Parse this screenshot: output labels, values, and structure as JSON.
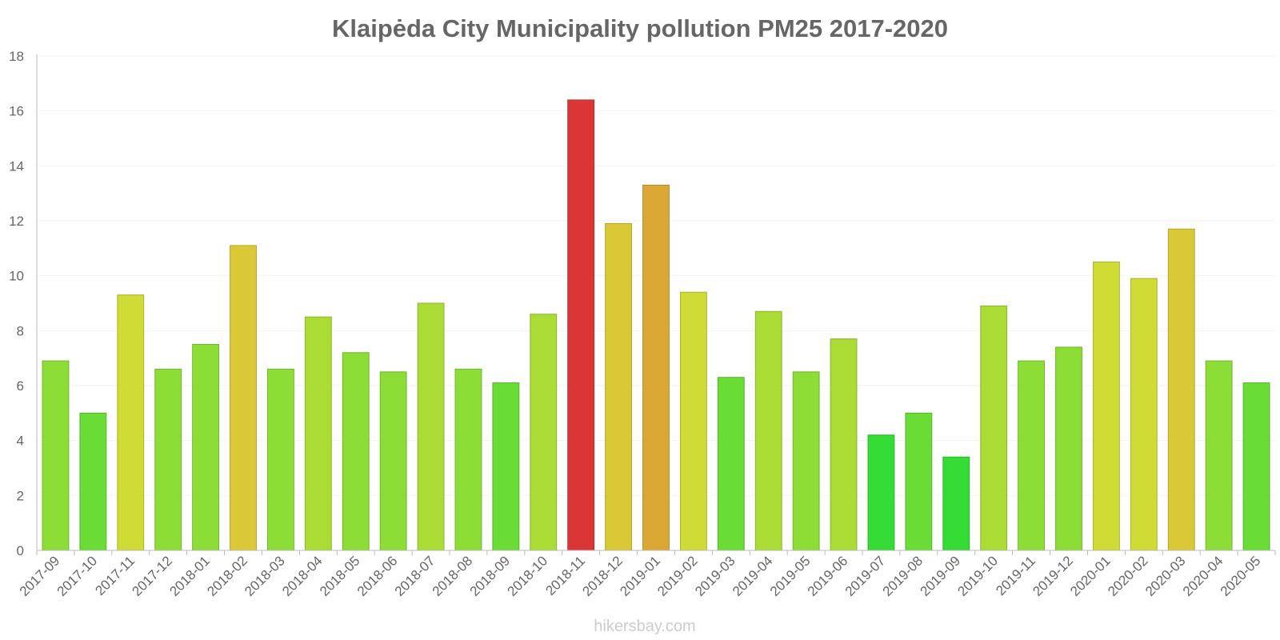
{
  "chart_data": {
    "type": "bar",
    "title": "Klaipėda City Municipality pollution PM25 2017-2020",
    "xlabel": "",
    "ylabel": "",
    "ylim": [
      0,
      18
    ],
    "yticks": [
      0,
      2,
      4,
      6,
      8,
      10,
      12,
      14,
      16,
      18
    ],
    "grid": true,
    "legend": "none",
    "categories": [
      "2017-09",
      "2017-10",
      "2017-11",
      "2017-12",
      "2018-01",
      "2018-02",
      "2018-03",
      "2018-04",
      "2018-05",
      "2018-06",
      "2018-07",
      "2018-08",
      "2018-09",
      "2018-10",
      "2018-11",
      "2018-12",
      "2019-01",
      "2019-02",
      "2019-03",
      "2019-04",
      "2019-05",
      "2019-06",
      "2019-07",
      "2019-08",
      "2019-09",
      "2019-10",
      "2019-11",
      "2019-12",
      "2020-01",
      "2020-02",
      "2020-03",
      "2020-04",
      "2020-05"
    ],
    "values": [
      6.9,
      5.0,
      9.3,
      6.6,
      7.5,
      11.1,
      6.6,
      8.5,
      7.2,
      6.5,
      9.0,
      6.6,
      6.1,
      8.6,
      16.4,
      11.9,
      13.3,
      9.4,
      6.3,
      8.7,
      6.5,
      7.7,
      4.2,
      5.0,
      3.4,
      8.9,
      6.9,
      7.4,
      10.5,
      9.9,
      11.7,
      6.9,
      6.1
    ],
    "colors": [
      "#8cdd36",
      "#6adc36",
      "#cfdc36",
      "#8cdd36",
      "#8cdd36",
      "#dbc836",
      "#8cdd36",
      "#abdc36",
      "#8cdd36",
      "#8cdd36",
      "#abdc36",
      "#8cdd36",
      "#6adc36",
      "#abdc36",
      "#db3636",
      "#dbc836",
      "#dba836",
      "#cfdc36",
      "#6adc36",
      "#abdc36",
      "#8cdd36",
      "#abdc36",
      "#36dc36",
      "#6adc36",
      "#36dc36",
      "#abdc36",
      "#8cdd36",
      "#8cdd36",
      "#cfdc36",
      "#cfdc36",
      "#dbc836",
      "#8cdd36",
      "#6adc36"
    ]
  },
  "watermark": "hikersbay.com"
}
